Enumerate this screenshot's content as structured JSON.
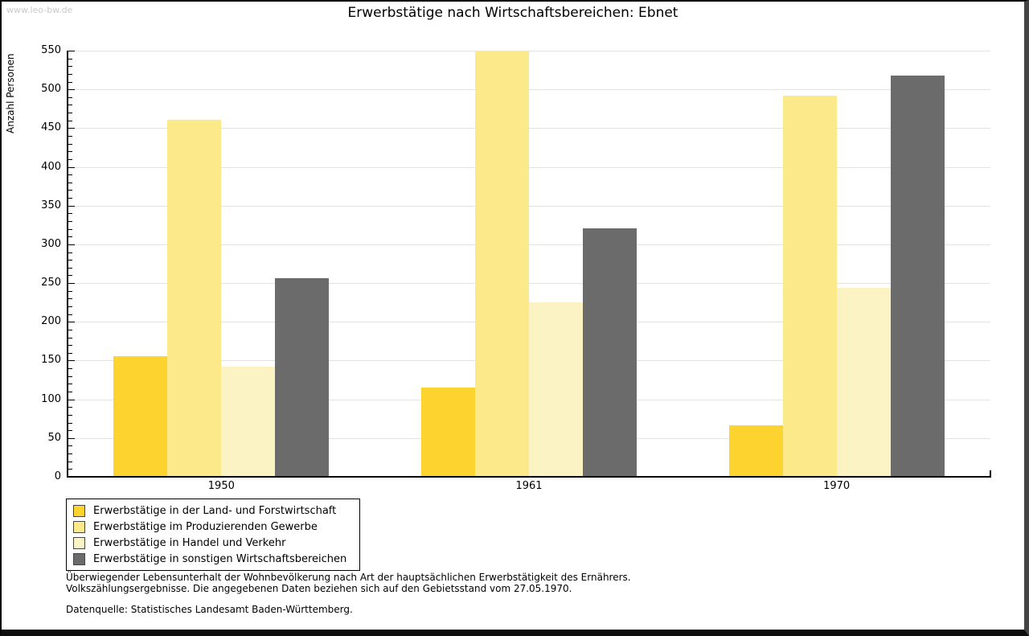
{
  "watermark": "www.leo-bw.de",
  "title": "Erwerbstätige nach Wirtschaftsbereichen: Ebnet",
  "chart_data": {
    "type": "bar",
    "title": "Erwerbstätige nach Wirtschaftsbereichen: Ebnet",
    "xlabel": "",
    "ylabel": "Anzahl Personen",
    "categories": [
      "1950",
      "1961",
      "1970"
    ],
    "series": [
      {
        "name": "Erwerbstätige in der Land- und Forstwirtschaft",
        "color": "#fcd32f",
        "values": [
          156,
          115,
          66
        ]
      },
      {
        "name": "Erwerbstätige im Produzierenden Gewerbe",
        "color": "#fce98a",
        "values": [
          461,
          550,
          492
        ]
      },
      {
        "name": "Erwerbstätige in Handel und Verkehr",
        "color": "#fcf3c5",
        "values": [
          142,
          225,
          244
        ]
      },
      {
        "name": "Erwerbstätige in sonstigen Wirtschaftsbereichen",
        "color": "#6b6b6b",
        "values": [
          256,
          321,
          518
        ]
      }
    ],
    "ylim": [
      0,
      550
    ],
    "ytick_step": 50,
    "minor_tick_step": 10,
    "grid": true,
    "gridline_color": "#e2e2e2",
    "legend_position": "bottom-left"
  },
  "footnotes": {
    "line1": "Überwiegender Lebensunterhalt der Wohnbevölkerung nach Art der hauptsächlichen Erwerbstätigkeit des Ernährers.",
    "line2": "Volkszählungsergebnisse. Die angegebenen Daten beziehen sich auf den Gebietsstand vom 27.05.1970.",
    "source": "Datenquelle: Statistisches Landesamt Baden-Württemberg."
  }
}
